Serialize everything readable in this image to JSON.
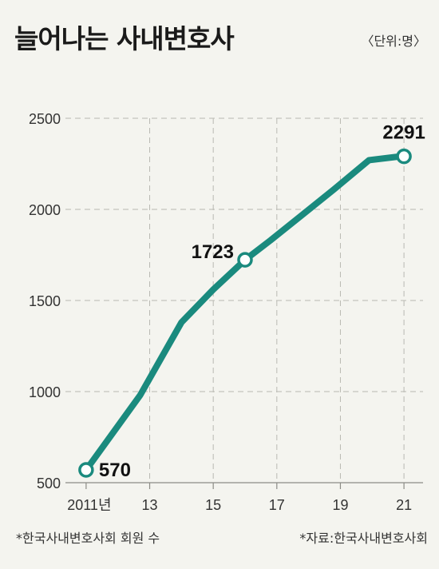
{
  "chart_data": {
    "type": "line",
    "title": "늘어나는 사내변호사",
    "unit_note": "〈단위:명〉",
    "x": [
      2011,
      2012,
      2013,
      2014,
      2015,
      2016,
      2017,
      2018,
      2019,
      2020,
      2021
    ],
    "x_tick_values": [
      2011,
      2013,
      2015,
      2017,
      2019,
      2021
    ],
    "x_tick_labels": [
      "2011년",
      "13",
      "15",
      "17",
      "19",
      "21"
    ],
    "y_ticks": [
      500,
      1000,
      1500,
      2000,
      2500
    ],
    "ylim": [
      500,
      2500
    ],
    "grid": true,
    "line_color": "#1a8a7e",
    "series": [
      {
        "values": [
          570,
          980,
          1380,
          1560,
          1723,
          1830,
          1970,
          2110,
          2270,
          2291,
          2291
        ],
        "x": [
          2011,
          2012.7,
          2014,
          2015,
          2016,
          2016.8,
          2017.8,
          2018.8,
          2019.9,
          2020.9,
          2020.9
        ]
      }
    ],
    "points": [
      {
        "x": 2011,
        "y": 570,
        "label": "570"
      },
      {
        "x": 2016,
        "y": 1723,
        "label": "1723"
      },
      {
        "x": 2021,
        "y": 2291,
        "label": "2291"
      }
    ],
    "footnote_left": "*한국사내변호사회 회원 수",
    "footnote_right": "*자료:한국사내변호사회"
  }
}
